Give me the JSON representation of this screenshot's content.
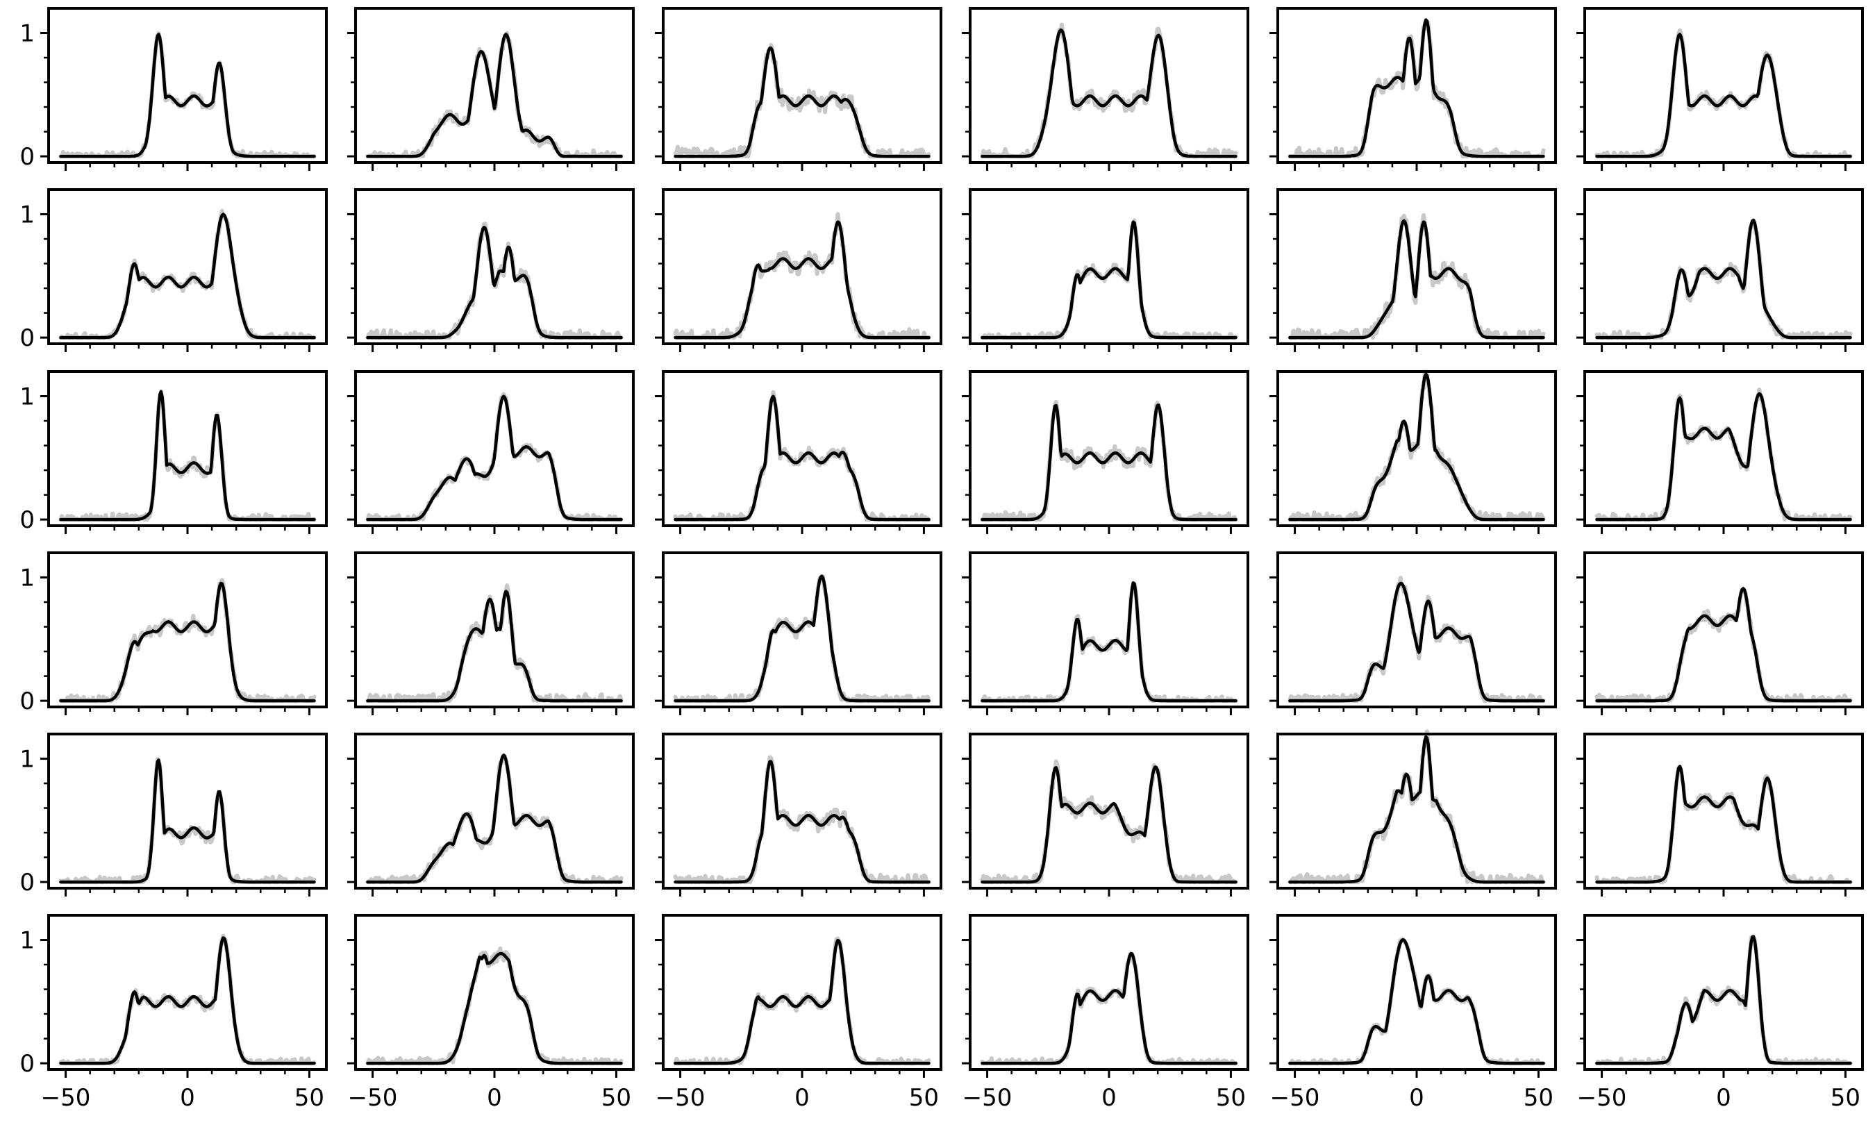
{
  "figure": {
    "rows": 6,
    "cols": 6
  },
  "colors": {
    "black_curve": "#000000",
    "gray_curve": "#c8c8c8",
    "frame": "#000000",
    "background": "#ffffff"
  },
  "chart_data": {
    "type": "line",
    "title": "",
    "xlabel": "",
    "ylabel": "",
    "xlim": [
      -57,
      57
    ],
    "ylim": [
      -0.05,
      1.2
    ],
    "x_ticks_major": [
      -50,
      0,
      50
    ],
    "x_tick_labels": [
      "−50",
      "0",
      "50"
    ],
    "y_ticks_major": [
      0,
      1
    ],
    "y_tick_labels": [
      "0",
      "1"
    ],
    "grid": false,
    "legend": "none",
    "series_style": [
      {
        "role": "reference",
        "color": "#c8c8c8"
      },
      {
        "role": "fit",
        "color": "#000000"
      }
    ],
    "panels": [
      {
        "row": 0,
        "col": 0,
        "peaks": [
          [
            -12,
            1.02,
            2.3
          ],
          [
            13,
            0.72,
            2.5
          ]
        ],
        "mid": [
          0,
          0.45,
          9
        ],
        "edges": [
          -17,
          18
        ],
        "gray_dev": 0.03
      },
      {
        "row": 0,
        "col": 1,
        "peaks": [
          [
            -5,
            0.85,
            4
          ],
          [
            5,
            0.98,
            3.5
          ]
        ],
        "mid": [
          -13,
          0.3,
          6
        ],
        "edges": [
          -28,
          26
        ],
        "gray_dev": 0.04
      },
      {
        "row": 0,
        "col": 2,
        "peaks": [
          [
            -13,
            0.92,
            3
          ],
          [
            18,
            0.5,
            4
          ]
        ],
        "mid": [
          0,
          0.45,
          10
        ],
        "edges": [
          -22,
          25
        ],
        "gray_dev": 0.07
      },
      {
        "row": 0,
        "col": 3,
        "peaks": [
          [
            -20,
            1.0,
            4
          ],
          [
            20,
            1.0,
            3.5
          ]
        ],
        "mid": [
          0,
          0.45,
          10
        ],
        "edges": [
          -28,
          27
        ],
        "gray_dev": 0.05
      },
      {
        "row": 0,
        "col": 4,
        "peaks": [
          [
            -3,
            1.0,
            2.5
          ],
          [
            4,
            1.08,
            2.5
          ]
        ],
        "mid": [
          -6,
          0.6,
          6
        ],
        "edges": [
          -22,
          18
        ],
        "gray_dev": 0.06
      },
      {
        "row": 0,
        "col": 5,
        "peaks": [
          [
            -18,
            0.95,
            3
          ],
          [
            18,
            0.86,
            3.5
          ]
        ],
        "mid": [
          0,
          0.45,
          9
        ],
        "edges": [
          -25,
          25
        ],
        "gray_dev": 0.03
      },
      {
        "row": 1,
        "col": 0,
        "peaks": [
          [
            -22,
            0.62,
            2.5
          ],
          [
            15,
            0.98,
            4
          ]
        ],
        "mid": [
          -5,
          0.45,
          10
        ],
        "edges": [
          -28,
          22
        ],
        "gray_dev": 0.03
      },
      {
        "row": 1,
        "col": 1,
        "peaks": [
          [
            -4,
            0.92,
            3
          ],
          [
            6,
            0.75,
            2.5
          ]
        ],
        "mid": [
          10,
          0.5,
          4
        ],
        "edges": [
          -16,
          18
        ],
        "gray_dev": 0.05
      },
      {
        "row": 1,
        "col": 2,
        "peaks": [
          [
            -18,
            0.55,
            3
          ],
          [
            15,
            0.92,
            3
          ]
        ],
        "mid": [
          5,
          0.6,
          9
        ],
        "edges": [
          -25,
          22
        ],
        "gray_dev": 0.06
      },
      {
        "row": 1,
        "col": 3,
        "peaks": [
          [
            -13,
            0.55,
            2
          ],
          [
            10,
            0.95,
            2
          ]
        ],
        "mid": [
          0,
          0.52,
          8
        ],
        "edges": [
          -17,
          15
        ],
        "gray_dev": 0.03
      },
      {
        "row": 1,
        "col": 4,
        "peaks": [
          [
            -5,
            0.95,
            3
          ],
          [
            3,
            0.9,
            2.5
          ]
        ],
        "mid": [
          14,
          0.52,
          4
        ],
        "edges": [
          -17,
          25
        ],
        "gray_dev": 0.06
      },
      {
        "row": 1,
        "col": 5,
        "peaks": [
          [
            -17,
            0.52,
            3
          ],
          [
            12,
            0.92,
            3
          ]
        ],
        "mid": [
          -2,
          0.52,
          4
        ],
        "edges": [
          -24,
          22
        ],
        "gray_dev": 0.04
      },
      {
        "row": 2,
        "col": 0,
        "peaks": [
          [
            -11,
            1.05,
            1.8
          ],
          [
            12,
            0.82,
            2
          ]
        ],
        "mid": [
          0,
          0.42,
          7
        ],
        "edges": [
          -15,
          16
        ],
        "gray_dev": 0.04
      },
      {
        "row": 2,
        "col": 1,
        "peaks": [
          [
            -12,
            0.52,
            4
          ],
          [
            4,
            0.97,
            3.5
          ]
        ],
        "mid": [
          12,
          0.55,
          5
        ],
        "edges": [
          -28,
          28
        ],
        "gray_dev": 0.03
      },
      {
        "row": 2,
        "col": 2,
        "peaks": [
          [
            -12,
            1.03,
            2.5
          ],
          [
            17,
            0.57,
            3.5
          ]
        ],
        "mid": [
          0,
          0.5,
          9
        ],
        "edges": [
          -20,
          25
        ],
        "gray_dev": 0.04
      },
      {
        "row": 2,
        "col": 3,
        "peaks": [
          [
            -22,
            0.95,
            2
          ],
          [
            20,
            0.95,
            2.5
          ]
        ],
        "mid": [
          0,
          0.5,
          12
        ],
        "edges": [
          -26,
          25
        ],
        "gray_dev": 0.05
      },
      {
        "row": 2,
        "col": 4,
        "peaks": [
          [
            -5,
            0.8,
            3
          ],
          [
            4,
            1.15,
            3
          ]
        ],
        "mid": [
          0,
          0.6,
          4
        ],
        "edges": [
          -20,
          22
        ],
        "gray_dev": 0.05
      },
      {
        "row": 2,
        "col": 5,
        "peaks": [
          [
            -18,
            0.95,
            2.5
          ],
          [
            15,
            1.0,
            4
          ]
        ],
        "mid": [
          -8,
          0.7,
          5
        ],
        "edges": [
          -22,
          22
        ],
        "gray_dev": 0.04
      },
      {
        "row": 3,
        "col": 0,
        "peaks": [
          [
            -22,
            0.5,
            3
          ],
          [
            14,
            0.92,
            3
          ]
        ],
        "mid": [
          0,
          0.6,
          7
        ],
        "edges": [
          -28,
          20
        ],
        "gray_dev": 0.04
      },
      {
        "row": 3,
        "col": 1,
        "peaks": [
          [
            -2,
            0.86,
            3
          ],
          [
            5,
            0.88,
            2.5
          ]
        ],
        "mid": [
          -6,
          0.55,
          4
        ],
        "edges": [
          -16,
          16
        ],
        "gray_dev": 0.05
      },
      {
        "row": 3,
        "col": 2,
        "peaks": [
          [
            -12,
            0.6,
            2.5
          ],
          [
            8,
            1.05,
            3
          ]
        ],
        "mid": [
          0,
          0.6,
          8
        ],
        "edges": [
          -17,
          15
        ],
        "gray_dev": 0.04
      },
      {
        "row": 3,
        "col": 3,
        "peaks": [
          [
            -13,
            0.7,
            2
          ],
          [
            10,
            0.97,
            2
          ]
        ],
        "mid": [
          0,
          0.45,
          8
        ],
        "edges": [
          -17,
          15
        ],
        "gray_dev": 0.03
      },
      {
        "row": 3,
        "col": 4,
        "peaks": [
          [
            -6,
            0.93,
            5
          ],
          [
            5,
            0.8,
            3
          ]
        ],
        "mid": [
          14,
          0.55,
          4
        ],
        "edges": [
          -22,
          27
        ],
        "gray_dev": 0.04
      },
      {
        "row": 3,
        "col": 5,
        "peaks": [
          [
            -14,
            0.62,
            2.5
          ],
          [
            8,
            0.95,
            3
          ]
        ],
        "mid": [
          -2,
          0.65,
          6
        ],
        "edges": [
          -20,
          16
        ],
        "gray_dev": 0.04
      },
      {
        "row": 4,
        "col": 0,
        "peaks": [
          [
            -12,
            1.02,
            1.8
          ],
          [
            13,
            0.7,
            2
          ]
        ],
        "mid": [
          0,
          0.4,
          8
        ],
        "edges": [
          -15,
          17
        ],
        "gray_dev": 0.04
      },
      {
        "row": 4,
        "col": 1,
        "peaks": [
          [
            -12,
            0.58,
            4
          ],
          [
            4,
            1.0,
            3.5
          ]
        ],
        "mid": [
          12,
          0.5,
          5
        ],
        "edges": [
          -28,
          28
        ],
        "gray_dev": 0.04
      },
      {
        "row": 4,
        "col": 2,
        "peaks": [
          [
            -13,
            1.02,
            2.5
          ],
          [
            17,
            0.55,
            3.5
          ]
        ],
        "mid": [
          0,
          0.5,
          9
        ],
        "edges": [
          -20,
          25
        ],
        "gray_dev": 0.05
      },
      {
        "row": 4,
        "col": 3,
        "peaks": [
          [
            -22,
            0.95,
            2.5
          ],
          [
            19,
            0.97,
            3
          ]
        ],
        "mid": [
          -10,
          0.6,
          6
        ],
        "edges": [
          -26,
          25
        ],
        "gray_dev": 0.05
      },
      {
        "row": 4,
        "col": 4,
        "peaks": [
          [
            -4,
            0.9,
            3
          ],
          [
            4,
            1.15,
            2.5
          ]
        ],
        "mid": [
          0,
          0.7,
          4
        ],
        "edges": [
          -22,
          20
        ],
        "gray_dev": 0.06
      },
      {
        "row": 4,
        "col": 5,
        "peaks": [
          [
            -18,
            0.9,
            2.5
          ],
          [
            18,
            0.88,
            3
          ]
        ],
        "mid": [
          -8,
          0.65,
          6
        ],
        "edges": [
          -23,
          23
        ],
        "gray_dev": 0.04
      },
      {
        "row": 5,
        "col": 0,
        "peaks": [
          [
            -22,
            0.6,
            2.5
          ],
          [
            15,
            1.0,
            3
          ]
        ],
        "mid": [
          0,
          0.5,
          9
        ],
        "edges": [
          -28,
          20
        ],
        "gray_dev": 0.03
      },
      {
        "row": 5,
        "col": 1,
        "peaks": [
          [
            -4,
            0.9,
            3
          ],
          [
            5,
            0.85,
            3
          ]
        ],
        "mid": [
          0,
          0.85,
          3
        ],
        "edges": [
          -16,
          18
        ],
        "gray_dev": 0.04
      },
      {
        "row": 5,
        "col": 2,
        "peaks": [
          [
            -18,
            0.5,
            2.5
          ],
          [
            15,
            0.98,
            3
          ]
        ],
        "mid": [
          0,
          0.5,
          9
        ],
        "edges": [
          -24,
          20
        ],
        "gray_dev": 0.03
      },
      {
        "row": 5,
        "col": 3,
        "peaks": [
          [
            -13,
            0.6,
            2
          ],
          [
            9,
            0.92,
            3
          ]
        ],
        "mid": [
          0,
          0.55,
          7
        ],
        "edges": [
          -17,
          15
        ],
        "gray_dev": 0.03
      },
      {
        "row": 5,
        "col": 4,
        "peaks": [
          [
            -5,
            1.0,
            5
          ],
          [
            5,
            0.7,
            3
          ]
        ],
        "mid": [
          13,
          0.55,
          4
        ],
        "edges": [
          -22,
          28
        ],
        "gray_dev": 0.02
      },
      {
        "row": 5,
        "col": 5,
        "peaks": [
          [
            -15,
            0.5,
            3
          ],
          [
            12,
            1.0,
            2.5
          ]
        ],
        "mid": [
          0,
          0.55,
          4
        ],
        "edges": [
          -22,
          17
        ],
        "gray_dev": 0.03
      }
    ]
  }
}
